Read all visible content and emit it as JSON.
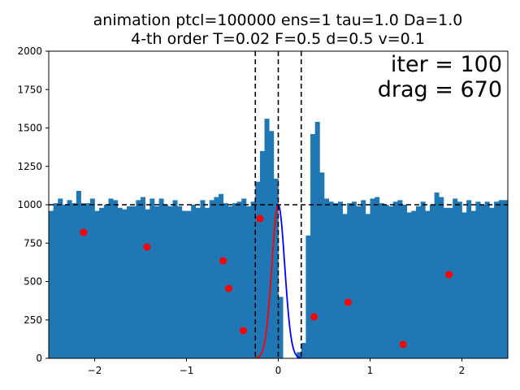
{
  "chart_data": {
    "type": "bar",
    "title_lines": [
      "animation ptcl=100000 ens=1 tau=1.0 Da=1.0",
      "4-th order T=0.02 F=0.5 d=0.5 v=0.1"
    ],
    "xlabel": "",
    "ylabel": "",
    "xlim": [
      -2.5,
      2.5
    ],
    "ylim": [
      0,
      2000
    ],
    "x_ticks": [
      -2,
      -1,
      0,
      1,
      2
    ],
    "x_tick_labels": [
      "−2",
      "−1",
      "0",
      "1",
      "2"
    ],
    "y_ticks": [
      0,
      250,
      500,
      750,
      1000,
      1250,
      1500,
      1750,
      2000
    ],
    "y_tick_labels": [
      "0",
      "250",
      "500",
      "750",
      "1000",
      "1250",
      "1500",
      "1750",
      "2000"
    ],
    "grid": false,
    "annotations": [
      "iter = 100",
      "drag = 670"
    ],
    "colors": {
      "bars": "#1f77b4",
      "points": "#ff0000",
      "curve_left": "#ff0000",
      "curve_right": "#0000ff",
      "reference_lines": "#000000"
    },
    "histogram": {
      "bin_width": 0.05,
      "x_start": -2.5,
      "values": [
        960,
        1010,
        1040,
        1000,
        1030,
        1010,
        1090,
        1010,
        1010,
        1040,
        960,
        980,
        1000,
        1040,
        1030,
        980,
        970,
        990,
        990,
        1030,
        1050,
        970,
        1040,
        990,
        1040,
        1000,
        990,
        1030,
        990,
        960,
        960,
        1000,
        980,
        1030,
        980,
        1030,
        1050,
        1070,
        1010,
        990,
        1010,
        1020,
        1040,
        990,
        1020,
        1150,
        1350,
        1560,
        1480,
        1170,
        400,
        0,
        0,
        0,
        40,
        100,
        800,
        1460,
        1540,
        1210,
        1040,
        1020,
        1010,
        1020,
        940,
        1010,
        1020,
        990,
        1030,
        940,
        1040,
        1050,
        1010,
        1000,
        990,
        1020,
        1030,
        1000,
        950,
        960,
        990,
        1020,
        960,
        1000,
        1080,
        1050,
        980,
        980,
        1040,
        1020,
        950,
        1030,
        960,
        1020,
        1000,
        1020,
        980,
        1020,
        1030,
        1030
      ]
    },
    "reference_lines": {
      "vertical_x": [
        -0.25,
        0,
        0.25
      ],
      "horizontal_y": [
        1000
      ]
    },
    "scatter_points": [
      {
        "x": -2.12,
        "y": 820
      },
      {
        "x": -1.43,
        "y": 725
      },
      {
        "x": -0.6,
        "y": 635
      },
      {
        "x": -0.54,
        "y": 455
      },
      {
        "x": -0.38,
        "y": 180
      },
      {
        "x": -0.2,
        "y": 910
      },
      {
        "x": 0.39,
        "y": 270
      },
      {
        "x": 0.76,
        "y": 365
      },
      {
        "x": 1.36,
        "y": 90
      },
      {
        "x": 1.86,
        "y": 545
      }
    ],
    "curves": [
      {
        "side": "left",
        "x_from": -0.25,
        "x_to": 0,
        "peak_x": 0,
        "peak_y": 1000,
        "sigma": 0.07
      },
      {
        "side": "right",
        "x_from": 0,
        "x_to": 0.25,
        "peak_x": 0,
        "peak_y": 1000,
        "sigma": 0.07
      }
    ]
  }
}
